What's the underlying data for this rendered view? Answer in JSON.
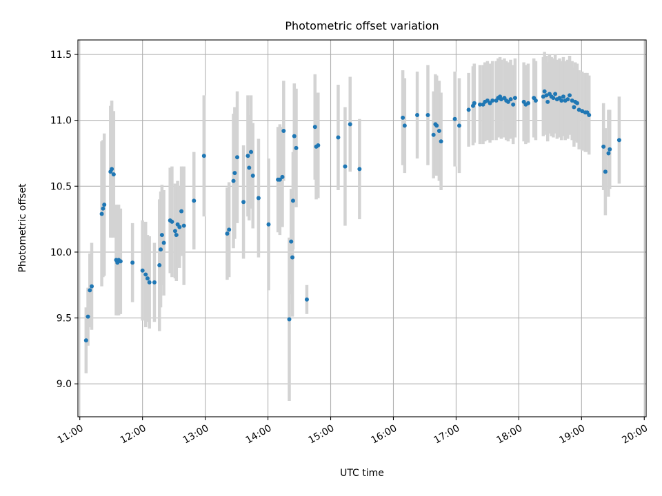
{
  "chart_data": {
    "type": "scatter",
    "title": "Photometric offset variation",
    "xlabel": "UTC time",
    "ylabel": "Photometric offset",
    "xlim": [
      10.97,
      20.03
    ],
    "ylim": [
      8.75,
      11.61
    ],
    "x_ticks": [
      {
        "value": 11,
        "label": "11:00"
      },
      {
        "value": 12,
        "label": "12:00"
      },
      {
        "value": 13,
        "label": "13:00"
      },
      {
        "value": 14,
        "label": "14:00"
      },
      {
        "value": 15,
        "label": "15:00"
      },
      {
        "value": 16,
        "label": "16:00"
      },
      {
        "value": 17,
        "label": "17:00"
      },
      {
        "value": 18,
        "label": "18:00"
      },
      {
        "value": 19,
        "label": "19:00"
      },
      {
        "value": 20,
        "label": "20:00"
      }
    ],
    "y_ticks": [
      {
        "value": 9.0,
        "label": "9.0"
      },
      {
        "value": 9.5,
        "label": "9.5"
      },
      {
        "value": 10.0,
        "label": "10.0"
      },
      {
        "value": 10.5,
        "label": "10.5"
      },
      {
        "value": 11.0,
        "label": "11.0"
      },
      {
        "value": 11.5,
        "label": "11.5"
      }
    ],
    "grid": true,
    "point_color": "#1f77b4",
    "errorbar_color": "#d3d3d3",
    "series": [
      {
        "name": "offset",
        "points": [
          [
            11.1,
            9.33,
            0.25
          ],
          [
            11.13,
            9.51,
            0.22
          ],
          [
            11.16,
            9.71,
            0.28
          ],
          [
            11.19,
            9.74,
            0.33
          ],
          [
            11.35,
            10.29,
            0.55
          ],
          [
            11.37,
            10.33,
            0.52
          ],
          [
            11.39,
            10.36,
            0.54
          ],
          [
            11.49,
            10.61,
            0.5
          ],
          [
            11.51,
            10.63,
            0.52
          ],
          [
            11.54,
            10.59,
            0.48
          ],
          [
            11.58,
            9.94,
            0.42
          ],
          [
            11.6,
            9.92,
            0.4
          ],
          [
            11.62,
            9.94,
            0.42
          ],
          [
            11.65,
            9.93,
            0.4
          ],
          [
            11.84,
            9.92,
            0.3
          ],
          [
            12.0,
            9.86,
            0.38
          ],
          [
            12.05,
            9.83,
            0.4
          ],
          [
            12.08,
            9.8,
            0.33
          ],
          [
            12.11,
            9.77,
            0.35
          ],
          [
            12.19,
            9.77,
            0.3
          ],
          [
            12.27,
            9.9,
            0.5
          ],
          [
            12.29,
            10.02,
            0.44
          ],
          [
            12.31,
            10.13,
            0.38
          ],
          [
            12.34,
            10.07,
            0.4
          ],
          [
            12.44,
            10.24,
            0.4
          ],
          [
            12.47,
            10.23,
            0.42
          ],
          [
            12.52,
            10.16,
            0.36
          ],
          [
            12.54,
            10.13,
            0.35
          ],
          [
            12.56,
            10.21,
            0.33
          ],
          [
            12.59,
            10.19,
            0.31
          ],
          [
            12.62,
            10.31,
            0.34
          ],
          [
            12.66,
            10.2,
            0.45
          ],
          [
            12.82,
            10.39,
            0.37
          ],
          [
            12.98,
            10.73,
            0.46
          ],
          [
            13.35,
            10.14,
            0.35
          ],
          [
            13.38,
            10.17,
            0.36
          ],
          [
            13.45,
            10.54,
            0.51
          ],
          [
            13.47,
            10.6,
            0.5
          ],
          [
            13.51,
            10.72,
            0.5
          ],
          [
            13.61,
            10.38,
            0.43
          ],
          [
            13.68,
            10.73,
            0.46
          ],
          [
            13.7,
            10.64,
            0.4
          ],
          [
            13.73,
            10.76,
            0.43
          ],
          [
            13.76,
            10.58,
            0.4
          ],
          [
            13.85,
            10.41,
            0.45
          ],
          [
            14.01,
            10.21,
            0.5
          ],
          [
            14.16,
            10.55,
            0.4
          ],
          [
            14.19,
            10.55,
            0.42
          ],
          [
            14.23,
            10.57,
            0.38
          ],
          [
            14.25,
            10.92,
            0.38
          ],
          [
            14.34,
            9.49,
            0.62
          ],
          [
            14.37,
            10.08,
            0.4
          ],
          [
            14.39,
            9.96,
            0.45
          ],
          [
            14.4,
            10.39,
            0.37
          ],
          [
            14.42,
            10.88,
            0.4
          ],
          [
            14.45,
            10.79,
            0.45
          ],
          [
            14.62,
            9.64,
            0.11
          ],
          [
            14.75,
            10.95,
            0.4
          ],
          [
            14.77,
            10.8,
            0.4
          ],
          [
            14.8,
            10.81,
            0.4
          ],
          [
            15.12,
            10.87,
            0.4
          ],
          [
            15.23,
            10.65,
            0.45
          ],
          [
            15.31,
            10.97,
            0.36
          ],
          [
            15.46,
            10.63,
            0.38
          ],
          [
            16.15,
            11.02,
            0.36
          ],
          [
            16.18,
            10.96,
            0.36
          ],
          [
            16.38,
            11.04,
            0.33
          ],
          [
            16.55,
            11.04,
            0.38
          ],
          [
            16.64,
            10.89,
            0.33
          ],
          [
            16.67,
            10.97,
            0.38
          ],
          [
            16.69,
            10.96,
            0.38
          ],
          [
            16.73,
            10.92,
            0.38
          ],
          [
            16.76,
            10.84,
            0.37
          ],
          [
            16.98,
            11.01,
            0.36
          ],
          [
            17.05,
            10.96,
            0.36
          ],
          [
            17.2,
            11.08,
            0.28
          ],
          [
            17.27,
            11.11,
            0.3
          ],
          [
            17.29,
            11.13,
            0.3
          ],
          [
            17.38,
            11.12,
            0.3
          ],
          [
            17.43,
            11.12,
            0.3
          ],
          [
            17.46,
            11.14,
            0.3
          ],
          [
            17.5,
            11.15,
            0.3
          ],
          [
            17.54,
            11.13,
            0.3
          ],
          [
            17.58,
            11.15,
            0.3
          ],
          [
            17.64,
            11.15,
            0.3
          ],
          [
            17.67,
            11.17,
            0.3
          ],
          [
            17.7,
            11.18,
            0.3
          ],
          [
            17.72,
            11.16,
            0.3
          ],
          [
            17.77,
            11.17,
            0.3
          ],
          [
            17.8,
            11.15,
            0.3
          ],
          [
            17.83,
            11.14,
            0.3
          ],
          [
            17.87,
            11.16,
            0.3
          ],
          [
            17.91,
            11.12,
            0.3
          ],
          [
            17.94,
            11.17,
            0.3
          ],
          [
            18.08,
            11.14,
            0.3
          ],
          [
            18.11,
            11.12,
            0.3
          ],
          [
            18.15,
            11.13,
            0.3
          ],
          [
            18.24,
            11.17,
            0.3
          ],
          [
            18.27,
            11.15,
            0.3
          ],
          [
            18.39,
            11.18,
            0.3
          ],
          [
            18.41,
            11.22,
            0.3
          ],
          [
            18.44,
            11.19,
            0.3
          ],
          [
            18.46,
            11.14,
            0.3
          ],
          [
            18.49,
            11.2,
            0.3
          ],
          [
            18.52,
            11.18,
            0.3
          ],
          [
            18.55,
            11.17,
            0.3
          ],
          [
            18.58,
            11.2,
            0.3
          ],
          [
            18.61,
            11.16,
            0.3
          ],
          [
            18.65,
            11.17,
            0.3
          ],
          [
            18.68,
            11.15,
            0.3
          ],
          [
            18.71,
            11.18,
            0.3
          ],
          [
            18.74,
            11.15,
            0.3
          ],
          [
            18.78,
            11.16,
            0.3
          ],
          [
            18.81,
            11.19,
            0.3
          ],
          [
            18.85,
            11.15,
            0.3
          ],
          [
            18.88,
            11.1,
            0.3
          ],
          [
            18.9,
            11.14,
            0.3
          ],
          [
            18.93,
            11.13,
            0.3
          ],
          [
            18.96,
            11.08,
            0.3
          ],
          [
            19.01,
            11.07,
            0.3
          ],
          [
            19.06,
            11.06,
            0.3
          ],
          [
            19.09,
            11.06,
            0.3
          ],
          [
            19.12,
            11.04,
            0.3
          ],
          [
            19.35,
            10.8,
            0.33
          ],
          [
            19.38,
            10.61,
            0.33
          ],
          [
            19.43,
            10.75,
            0.33
          ],
          [
            19.45,
            10.78,
            0.3
          ],
          [
            19.6,
            10.85,
            0.33
          ]
        ]
      }
    ]
  }
}
